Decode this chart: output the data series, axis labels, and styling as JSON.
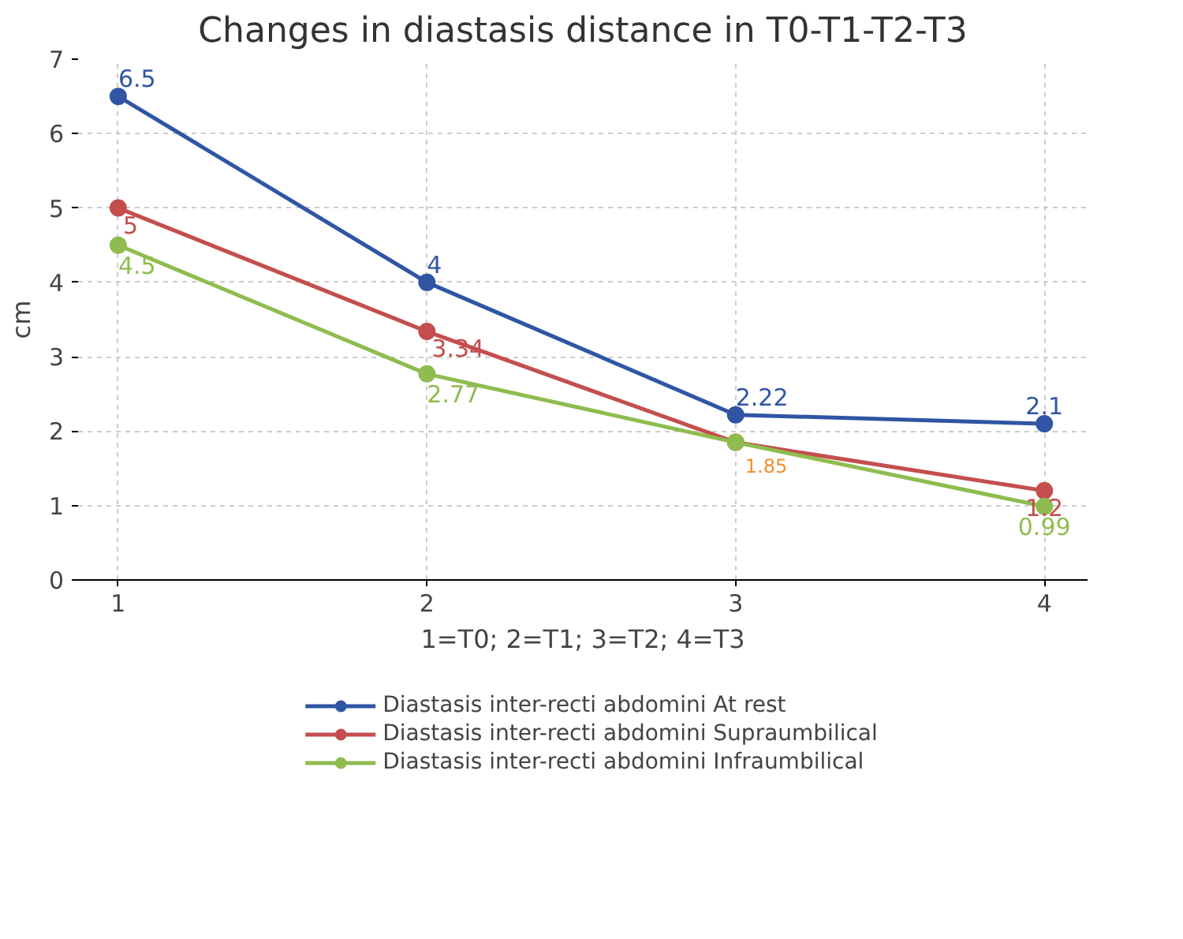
{
  "chart_data": {
    "type": "line",
    "title": "Changes in diastasis distance in T0-T1-T2-T3",
    "xlabel": "1=T0; 2=T1; 3=T2; 4=T3",
    "ylabel": "cm",
    "x": [
      1,
      2,
      3,
      4
    ],
    "xlim": [
      0.87,
      4.14
    ],
    "xticks": [
      1,
      2,
      3,
      4
    ],
    "ylim": [
      0,
      7
    ],
    "yticks": [
      0,
      1,
      2,
      3,
      4,
      5,
      6,
      7
    ],
    "series": [
      {
        "name": "Diastasis inter-recti abdomini At rest",
        "color": "#2f55a4",
        "values": [
          6.5,
          4,
          2.22,
          2.1
        ],
        "value_labels": [
          "6.5",
          "4",
          "2.22",
          "2.1"
        ]
      },
      {
        "name": "Diastasis inter-recti abdomini Supraumbilical",
        "color": "#c44e4e",
        "values": [
          5,
          3.34,
          1.85,
          1.2
        ],
        "value_labels": [
          "5",
          "3.34",
          null,
          "1.2"
        ]
      },
      {
        "name": "Diastasis inter-recti abdomini Infraumbilical",
        "color": "#8fbc4f",
        "values": [
          4.5,
          2.77,
          1.85,
          0.99
        ],
        "value_labels": [
          "4.5",
          "2.77",
          null,
          "0.99"
        ]
      }
    ],
    "annotations": [
      {
        "text": "1.85",
        "x": 3,
        "y": 1.85
      }
    ],
    "grid": true,
    "legend": "bottom",
    "marker": "circle",
    "line_style": "solid"
  }
}
